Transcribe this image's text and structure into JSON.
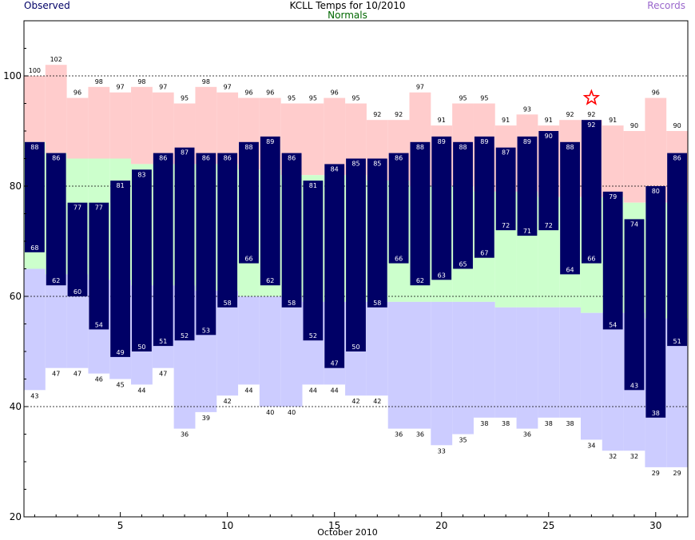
{
  "header": {
    "observed_label": "Observed",
    "title": "KCLL Temps for 10/2010",
    "normals_label": "Normals",
    "records_label": "Records"
  },
  "chart_data": {
    "type": "bar",
    "title": "KCLL Temps for 10/2010",
    "xlabel": "October 2010",
    "ylabel": "",
    "xlim": [
      0.5,
      31.5
    ],
    "ylim": [
      20,
      110
    ],
    "x_ticks": [
      5,
      10,
      15,
      20,
      25,
      30
    ],
    "y_ticks": [
      20,
      40,
      60,
      80,
      100
    ],
    "grid_lines_y": [
      40,
      60,
      80,
      100
    ],
    "days": [
      1,
      2,
      3,
      4,
      5,
      6,
      7,
      8,
      9,
      10,
      11,
      12,
      13,
      14,
      15,
      16,
      17,
      18,
      19,
      20,
      21,
      22,
      23,
      24,
      25,
      26,
      27,
      28,
      29,
      30,
      31
    ],
    "record_high": [
      100,
      102,
      96,
      98,
      97,
      98,
      97,
      95,
      98,
      97,
      96,
      96,
      95,
      95,
      96,
      95,
      92,
      92,
      97,
      91,
      95,
      95,
      91,
      93,
      91,
      92,
      92,
      91,
      90,
      96,
      90
    ],
    "normal_high": [
      88,
      86,
      85,
      85,
      85,
      84,
      84,
      84,
      84,
      84,
      83,
      83,
      82,
      82,
      82,
      82,
      81,
      81,
      80,
      80,
      80,
      79,
      79,
      79,
      78,
      78,
      78,
      78,
      77,
      77,
      77
    ],
    "normal_low": [
      65,
      64,
      64,
      63,
      63,
      62,
      62,
      62,
      61,
      61,
      60,
      60,
      60,
      59,
      59,
      59,
      59,
      59,
      59,
      59,
      59,
      59,
      58,
      58,
      58,
      58,
      57,
      57,
      57,
      56,
      56
    ],
    "record_low": [
      43,
      47,
      47,
      46,
      45,
      44,
      47,
      36,
      39,
      42,
      44,
      40,
      40,
      44,
      44,
      42,
      42,
      36,
      36,
      33,
      35,
      38,
      38,
      36,
      38,
      38,
      34,
      32,
      32,
      29,
      29
    ],
    "obs_high": [
      88,
      86,
      77,
      77,
      81,
      83,
      86,
      87,
      86,
      86,
      88,
      89,
      86,
      81,
      84,
      85,
      85,
      86,
      88,
      89,
      88,
      89,
      87,
      89,
      90,
      88,
      92,
      79,
      74,
      80,
      86
    ],
    "obs_low": [
      68,
      62,
      60,
      54,
      49,
      50,
      51,
      52,
      53,
      58,
      66,
      62,
      58,
      52,
      47,
      50,
      58,
      66,
      62,
      63,
      65,
      67,
      72,
      71,
      72,
      64,
      66,
      54,
      43,
      38,
      51
    ],
    "record_marker": {
      "day": 27,
      "value": 96,
      "symbol": "star"
    },
    "colors": {
      "record_high": "#ffcccc",
      "normal": "#ccffcc",
      "record_low": "#ccccff",
      "observed": "#000066",
      "marker": "#ff0000",
      "grid": "#000000"
    }
  }
}
